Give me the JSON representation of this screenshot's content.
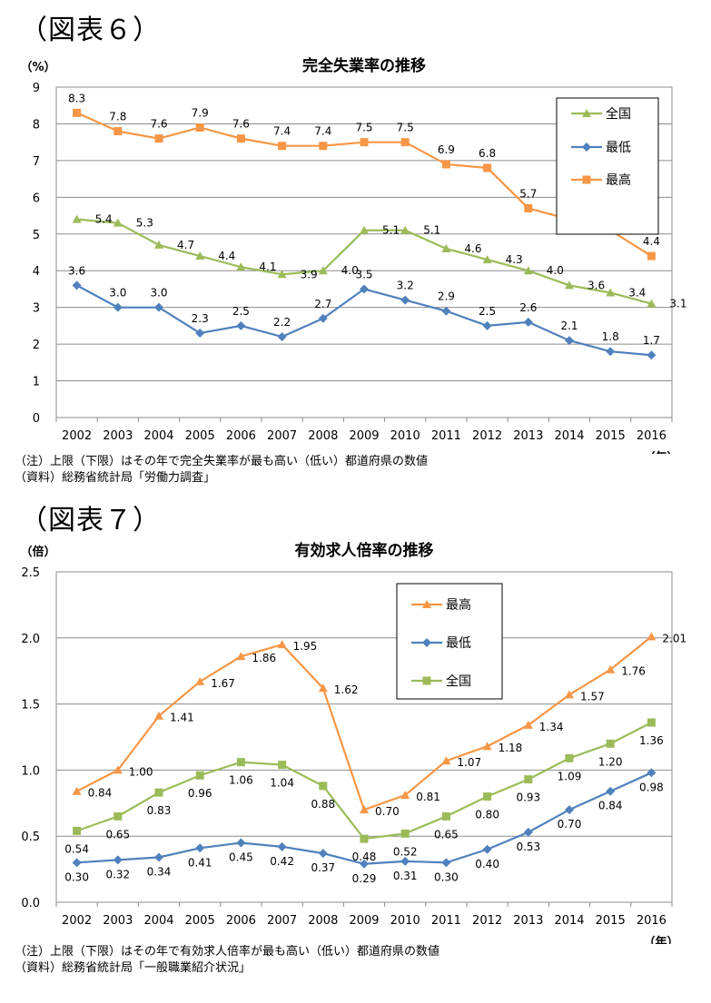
{
  "figures": [
    {
      "label": "（図表６）",
      "notes": [
        "（注）上限（下限）はその年で完全失業率が最も高い（低い）都道府県の数値",
        "（資料）総務省統計局「労働力調査」"
      ],
      "chart_data": {
        "type": "line",
        "title": "完全失業率の推移",
        "ylabel": "（%）",
        "xlabel": "（年）",
        "categories": [
          "2002",
          "2003",
          "2004",
          "2005",
          "2006",
          "2007",
          "2008",
          "2009",
          "2010",
          "2011",
          "2012",
          "2013",
          "2014",
          "2015",
          "2016"
        ],
        "ylim": [
          0,
          9
        ],
        "yticks": [
          0,
          1,
          2,
          3,
          4,
          5,
          6,
          7,
          8,
          9
        ],
        "ytick_labels": [
          "0",
          "1",
          "2",
          "3",
          "4",
          "5",
          "6",
          "7",
          "8",
          "9"
        ],
        "grid": true,
        "legend_position": "top-right",
        "legend_order": [
          "全国",
          "最低",
          "最高"
        ],
        "series": [
          {
            "name": "全国",
            "color": "#9bbb59",
            "marker": "triangle",
            "values": [
              5.4,
              5.3,
              4.7,
              4.4,
              4.1,
              3.9,
              4.0,
              5.1,
              5.1,
              4.6,
              4.3,
              4.0,
              3.6,
              3.4,
              3.1
            ],
            "labels": [
              "5.4",
              "5.3",
              "4.7",
              "4.4",
              "4.1",
              "3.9",
              "4.0",
              "5.1",
              "5.1",
              "4.6",
              "4.3",
              "4.0",
              "3.6",
              "3.4",
              "3.1"
            ]
          },
          {
            "name": "最低",
            "color": "#4f81bd",
            "marker": "diamond",
            "values": [
              3.6,
              3.0,
              3.0,
              2.3,
              2.5,
              2.2,
              2.7,
              3.5,
              3.2,
              2.9,
              2.5,
              2.6,
              2.1,
              1.8,
              1.7
            ],
            "labels": [
              "3.6",
              "3.0",
              "3.0",
              "2.3",
              "2.5",
              "2.2",
              "2.7",
              "3.5",
              "3.2",
              "2.9",
              "2.5",
              "2.6",
              "2.1",
              "1.8",
              "1.7"
            ]
          },
          {
            "name": "最高",
            "color": "#f79646",
            "marker": "square",
            "values": [
              8.3,
              7.8,
              7.6,
              7.9,
              7.6,
              7.4,
              7.4,
              7.5,
              7.5,
              6.9,
              6.8,
              5.7,
              5.4,
              5.1,
              4.4
            ],
            "labels": [
              "8.3",
              "7.8",
              "7.6",
              "7.9",
              "7.6",
              "7.4",
              "7.4",
              "7.5",
              "7.5",
              "6.9",
              "6.8",
              "5.7",
              "5.4",
              "5.1",
              "4.4"
            ]
          }
        ]
      }
    },
    {
      "label": "（図表７）",
      "notes": [
        "（注）上限（下限）はその年で有効求人倍率が最も高い（低い）都道府県の数値",
        "（資料）総務省統計局「一般職業紹介状況」"
      ],
      "chart_data": {
        "type": "line",
        "title": "有効求人倍率の推移",
        "ylabel": "（倍）",
        "xlabel": "（年）",
        "categories": [
          "2002",
          "2003",
          "2004",
          "2005",
          "2006",
          "2007",
          "2008",
          "2009",
          "2010",
          "2011",
          "2012",
          "2013",
          "2014",
          "2015",
          "2016"
        ],
        "ylim": [
          0,
          2.5
        ],
        "yticks": [
          0,
          0.5,
          1.0,
          1.5,
          2.0,
          2.5
        ],
        "ytick_labels": [
          "0.0",
          "0.5",
          "1.0",
          "1.5",
          "2.0",
          "2.5"
        ],
        "grid": true,
        "legend_position": "top-right",
        "legend_order": [
          "最高",
          "最低",
          "全国"
        ],
        "series": [
          {
            "name": "最高",
            "color": "#f79646",
            "marker": "triangle",
            "values": [
              0.84,
              1.0,
              1.41,
              1.67,
              1.86,
              1.95,
              1.62,
              0.7,
              0.81,
              1.07,
              1.18,
              1.34,
              1.57,
              1.76,
              2.01
            ],
            "labels": [
              "0.84",
              "1.00",
              "1.41",
              "1.67",
              "1.86",
              "1.95",
              "1.62",
              "0.70",
              "0.81",
              "1.07",
              "1.18",
              "1.34",
              "1.57",
              "1.76",
              "2.01"
            ]
          },
          {
            "name": "最低",
            "color": "#4f81bd",
            "marker": "diamond",
            "values": [
              0.3,
              0.32,
              0.34,
              0.41,
              0.45,
              0.42,
              0.37,
              0.29,
              0.31,
              0.3,
              0.4,
              0.53,
              0.7,
              0.84,
              0.98
            ],
            "labels": [
              "0.30",
              "0.32",
              "0.34",
              "0.41",
              "0.45",
              "0.42",
              "0.37",
              "0.29",
              "0.31",
              "0.30",
              "0.40",
              "0.53",
              "0.70",
              "0.84",
              "0.98"
            ]
          },
          {
            "name": "全国",
            "color": "#9bbb59",
            "marker": "square",
            "values": [
              0.54,
              0.65,
              0.83,
              0.96,
              1.06,
              1.04,
              0.88,
              0.48,
              0.52,
              0.65,
              0.8,
              0.93,
              1.09,
              1.2,
              1.36
            ],
            "labels": [
              "0.54",
              "0.65",
              "0.83",
              "0.96",
              "1.06",
              "1.04",
              "0.88",
              "0.48",
              "0.52",
              "0.65",
              "0.80",
              "0.93",
              "1.09",
              "1.20",
              "1.36"
            ]
          }
        ]
      }
    }
  ]
}
